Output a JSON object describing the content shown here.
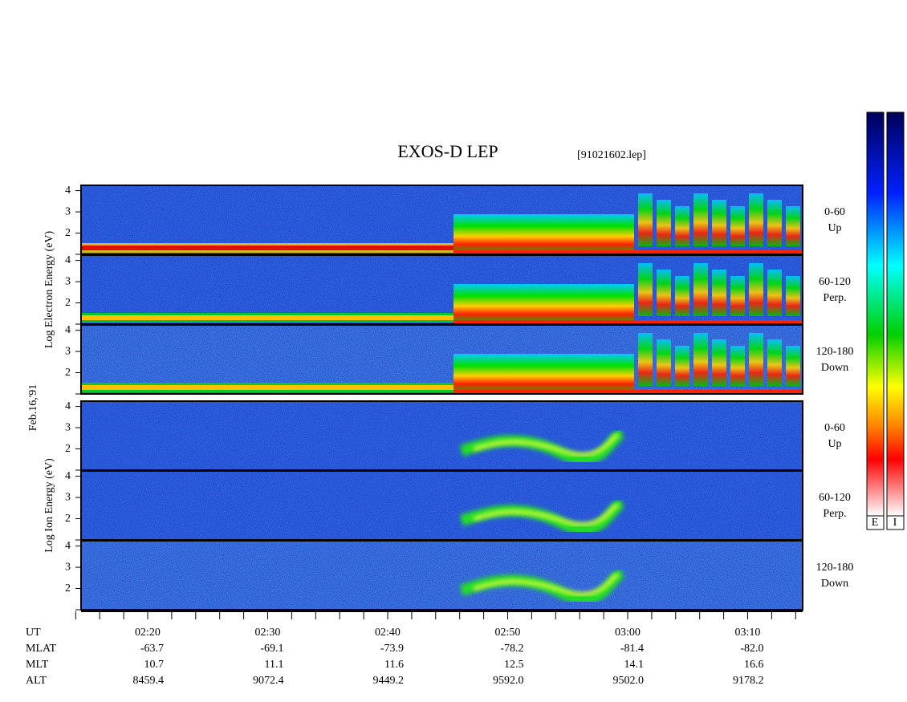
{
  "title": "EXOS-D LEP",
  "file": "[91021602.lep]",
  "date": "Feb.16,'91",
  "groups": [
    {
      "axis_label": "Log  Electron  Energy (eV)",
      "panels": [
        {
          "angle": "0-60",
          "direction": "Up",
          "yticks": [
            2,
            3,
            4
          ]
        },
        {
          "angle": "60-120",
          "direction": "Perp.",
          "yticks": [
            2,
            3,
            4
          ]
        },
        {
          "angle": "120-180",
          "direction": "Down",
          "yticks": [
            2,
            3,
            4
          ]
        }
      ]
    },
    {
      "axis_label": "Log  Ion  Energy (eV)",
      "panels": [
        {
          "angle": "0-60",
          "direction": "Up",
          "yticks": [
            2,
            3,
            4
          ]
        },
        {
          "angle": "60-120",
          "direction": "Perp.",
          "yticks": [
            2,
            3,
            4
          ]
        },
        {
          "angle": "120-180",
          "direction": "Down",
          "yticks": [
            2,
            3,
            4
          ]
        }
      ]
    }
  ],
  "ylim": [
    1,
    4.25
  ],
  "orbit": {
    "rows": [
      {
        "name": "UT",
        "values": [
          "02:20",
          "02:30",
          "02:40",
          "02:50",
          "03:00",
          "03:10"
        ]
      },
      {
        "name": "MLAT",
        "values": [
          "-63.7",
          "-69.1",
          "-73.9",
          "-78.2",
          "-81.4",
          "-82.0"
        ]
      },
      {
        "name": "MLT",
        "values": [
          "10.7",
          "11.1",
          "11.6",
          "12.5",
          "14.1",
          "16.6"
        ]
      },
      {
        "name": "ALT",
        "values": [
          "8459.4",
          "9072.4",
          "9449.2",
          "9592.0",
          "9502.0",
          "9178.2"
        ]
      }
    ]
  },
  "colorbar_labels": [
    "E",
    "I"
  ]
}
